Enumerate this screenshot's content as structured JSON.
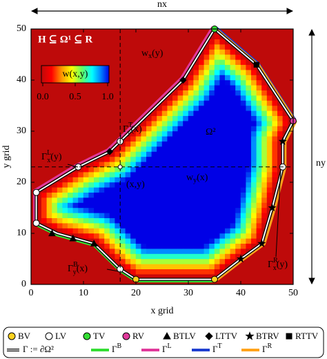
{
  "chart_data": {
    "type": "field",
    "x_label": "x grid",
    "y_label": "y grid",
    "xlim": [
      0,
      50
    ],
    "ylim": [
      0,
      50
    ],
    "xticks": [
      0,
      10,
      20,
      30,
      40,
      50
    ],
    "yticks": [
      0,
      10,
      20,
      30,
      40,
      50
    ],
    "nx": "nx",
    "ny": "ny",
    "probe": {
      "x": 17,
      "y": 23
    },
    "colorbar": {
      "label": "w(x,y)",
      "ticks": [
        {
          "value": 0,
          "label": "0.0"
        },
        {
          "value": 0.5,
          "label": "0.5"
        },
        {
          "value": 1,
          "label": "1.0"
        }
      ]
    },
    "annotations": {
      "set_relation": "H ⊆ Ω¹ ⊆ R",
      "wx": {
        "base": "w",
        "sub": "x",
        "arg": "(y)"
      },
      "wy": {
        "base": "w",
        "sub": "y",
        "arg": "(x)"
      },
      "omega2": "Ω²",
      "point": "(x,y)",
      "gamma_T": {
        "base": "Γ",
        "sup": "T",
        "sub": "y",
        "arg": "(x)"
      },
      "gamma_L": {
        "base": "Γ",
        "sup": "L",
        "sub": "x",
        "arg": "(y)"
      },
      "gamma_B": {
        "base": "Γ",
        "sup": "B",
        "sub": "y",
        "arg": "(x)"
      },
      "gamma_R": {
        "base": "Γ",
        "sup": "R",
        "sub": "x",
        "arg": "(y)"
      }
    },
    "markers": [
      {
        "label": "BV",
        "marker": "circle",
        "color": "#ffd21f",
        "x": [
          20,
          35
        ],
        "y": [
          1,
          1
        ]
      },
      {
        "label": "LV",
        "marker": "circle",
        "color": "#ffffff",
        "x": [
          1,
          1,
          9,
          17,
          17,
          48
        ],
        "y": [
          18,
          12,
          23,
          28,
          3,
          23
        ]
      },
      {
        "label": "TV",
        "marker": "circle",
        "color": "#33dd33",
        "x": [
          35
        ],
        "y": [
          50
        ]
      },
      {
        "label": "RV",
        "marker": "circle",
        "color": "#e0399b",
        "x": [
          50
        ],
        "y": [
          32
        ]
      },
      {
        "label": "BTLV",
        "marker": "triangle",
        "color": "#000000",
        "x": [
          4,
          8,
          12
        ],
        "y": [
          10,
          9,
          8
        ]
      },
      {
        "label": "LTTV",
        "marker": "diamond",
        "color": "#000000",
        "x": [
          15,
          29
        ],
        "y": [
          26,
          40
        ]
      },
      {
        "label": "BTRV",
        "marker": "star",
        "color": "#000000",
        "x": [
          40,
          44,
          46,
          48
        ],
        "y": [
          5,
          8,
          15,
          28
        ]
      },
      {
        "label": "RTTV",
        "marker": "square",
        "color": "#000000",
        "x": [
          43
        ],
        "y": [
          43
        ]
      }
    ],
    "boundaries": [
      {
        "label": "Γ := ∂Ω²",
        "color": "#000000",
        "x": [
          1,
          9,
          15,
          17,
          29,
          35,
          43,
          50,
          48,
          48,
          46,
          44,
          40,
          35,
          20,
          17,
          12,
          5,
          1
        ],
        "y": [
          18,
          23,
          26,
          28,
          40,
          50,
          43,
          32,
          28,
          23,
          15,
          8,
          5,
          1,
          1,
          3,
          8,
          10,
          12
        ]
      },
      {
        "base": "Γ",
        "sup": "B",
        "color": "#33dd33",
        "x": [
          1,
          5,
          12,
          17,
          20,
          35,
          40,
          44,
          46,
          48,
          48,
          50
        ],
        "y": [
          12,
          10,
          8,
          3,
          1,
          1,
          5,
          8,
          15,
          23,
          28,
          32
        ]
      },
      {
        "base": "Γ",
        "sup": "L",
        "color": "#e0399b",
        "x": [
          1,
          1,
          9,
          15,
          17,
          29,
          35
        ],
        "y": [
          12,
          18,
          23,
          26,
          28,
          40,
          50
        ]
      },
      {
        "base": "Γ",
        "sup": "T",
        "color": "#1f3fd0",
        "x": [
          35,
          43,
          50
        ],
        "y": [
          50,
          43,
          32
        ]
      },
      {
        "base": "Γ",
        "sup": "R",
        "color": "#ffa31a",
        "x": [
          35,
          43,
          50,
          48,
          48,
          46,
          44,
          40,
          35
        ],
        "y": [
          50,
          43,
          32,
          28,
          23,
          15,
          8,
          5,
          1
        ]
      }
    ]
  }
}
